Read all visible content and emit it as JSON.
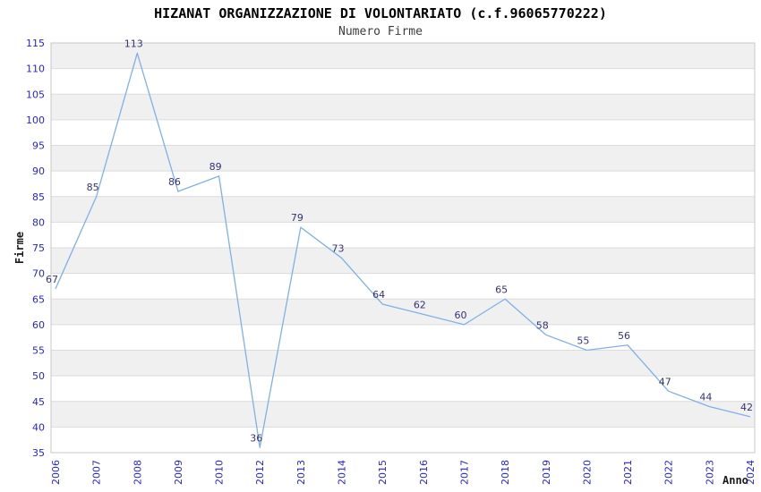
{
  "title": "HIZANAT ORGANIZZAZIONE DI VOLONTARIATO (c.f.96065770222)",
  "subtitle": "Numero Firme",
  "chart_data": {
    "type": "line",
    "title": "HIZANAT ORGANIZZAZIONE DI VOLONTARIATO (c.f.96065770222)",
    "subtitle": "Numero Firme",
    "xlabel": "Anno",
    "ylabel": "Firme",
    "categories": [
      "2006",
      "2007",
      "2008",
      "2009",
      "2010",
      "2012",
      "2013",
      "2014",
      "2015",
      "2016",
      "2017",
      "2018",
      "2019",
      "2020",
      "2021",
      "2022",
      "2023",
      "2024"
    ],
    "values": [
      67,
      85,
      113,
      86,
      89,
      36,
      79,
      73,
      64,
      62,
      60,
      65,
      58,
      55,
      56,
      47,
      44,
      42
    ],
    "ylim": [
      35,
      115
    ],
    "ytick_step": 5,
    "grid": "horizontal",
    "banding": "alternating-horizontal",
    "legend_position": "none",
    "markers": "none",
    "data_labels_shown": true
  },
  "colors": {
    "line": "#7EB1E9",
    "tick_label": "#2626D1",
    "data_label": "#333377",
    "band": "#F0F0F0",
    "gridline": "#DCDCDC",
    "border": "#C8C8C8",
    "background": "#FFFFFF"
  }
}
